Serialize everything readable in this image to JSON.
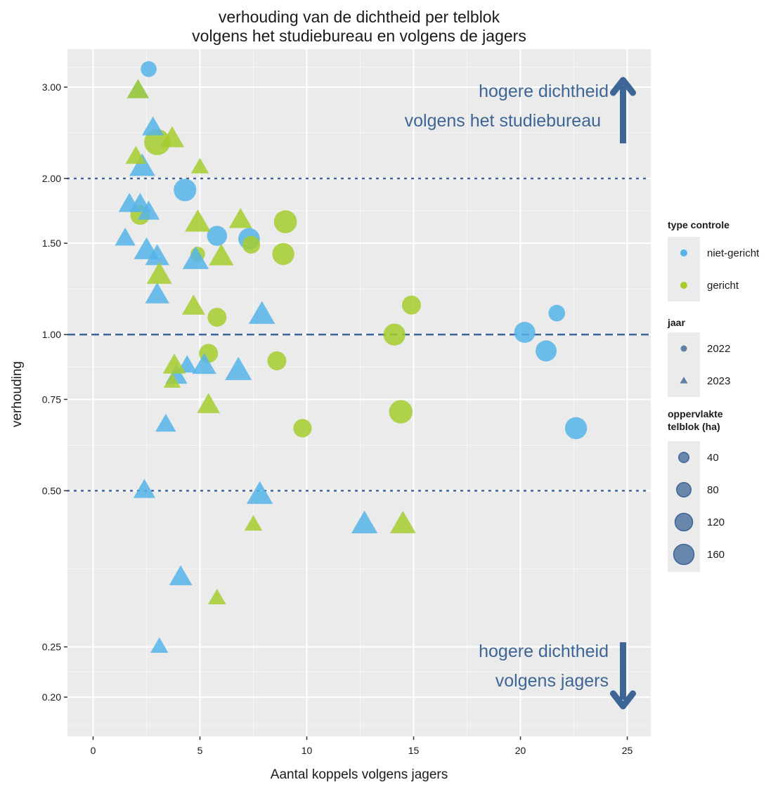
{
  "chart_data": {
    "type": "scatter",
    "title_lines": [
      "verhouding van de dichtheid per telblok",
      "volgens het studiebureau en volgens de jagers"
    ],
    "xlabel": "Aantal koppels volgens jagers",
    "ylabel": "verhouding",
    "xlim": [
      -1.2,
      26.1
    ],
    "ylim": [
      0.168,
      3.55
    ],
    "y_scale": "log",
    "x_ticks": [
      0,
      5,
      10,
      15,
      20,
      25
    ],
    "x_tick_labels": [
      "0",
      "5",
      "10",
      "15",
      "20",
      "25"
    ],
    "y_ticks": [
      0.2,
      0.25,
      0.5,
      0.75,
      1,
      1.5,
      2,
      3
    ],
    "y_tick_labels": [
      "0.20",
      "0.25",
      "0.50",
      "0.75",
      "1.00",
      "1.50",
      "2.00",
      "3.00"
    ],
    "reference_lines": [
      {
        "y": 2.0,
        "style": "dotted"
      },
      {
        "y": 1.0,
        "style": "dashed"
      },
      {
        "y": 0.5,
        "style": "dotted"
      }
    ],
    "grid": true,
    "legend_position": "right",
    "colors": {
      "niet-gericht": "#56b4e9",
      "gericht": "#a6cc2e",
      "annotation": "#3d6596",
      "panel": "#ebebeb"
    },
    "annotations": [
      {
        "lines": [
          "hogere dichtheid",
          "volgens het studiebureau"
        ],
        "arrow": "up"
      },
      {
        "lines": [
          "hogere dichtheid",
          "volgens jagers"
        ],
        "arrow": "down"
      }
    ],
    "legend": {
      "color_title": "type controle",
      "color_items": [
        "niet-gericht",
        "gericht"
      ],
      "shape_title": "jaar",
      "shape_items": [
        {
          "label": "2022",
          "shape": "circle"
        },
        {
          "label": "2023",
          "shape": "triangle"
        }
      ],
      "size_title_lines": [
        "oppervlakte",
        "telblok (ha)"
      ],
      "size_items": [
        40,
        80,
        120,
        160
      ]
    },
    "points": [
      {
        "x": 2.6,
        "y": 3.25,
        "type": "niet-gericht",
        "jaar": "2022",
        "area": 60
      },
      {
        "x": 4.3,
        "y": 1.9,
        "type": "niet-gericht",
        "jaar": "2022",
        "area": 120
      },
      {
        "x": 5.8,
        "y": 1.55,
        "type": "niet-gericht",
        "jaar": "2022",
        "area": 95
      },
      {
        "x": 7.3,
        "y": 1.53,
        "type": "niet-gericht",
        "jaar": "2022",
        "area": 110
      },
      {
        "x": 20.2,
        "y": 1.01,
        "type": "niet-gericht",
        "jaar": "2022",
        "area": 105
      },
      {
        "x": 21.7,
        "y": 1.1,
        "type": "niet-gericht",
        "jaar": "2022",
        "area": 65
      },
      {
        "x": 21.2,
        "y": 0.93,
        "type": "niet-gericht",
        "jaar": "2022",
        "area": 105
      },
      {
        "x": 22.6,
        "y": 0.66,
        "type": "niet-gericht",
        "jaar": "2022",
        "area": 115
      },
      {
        "x": 3.0,
        "y": 2.35,
        "type": "gericht",
        "jaar": "2022",
        "area": 160
      },
      {
        "x": 2.2,
        "y": 1.7,
        "type": "gericht",
        "jaar": "2022",
        "area": 90
      },
      {
        "x": 4.9,
        "y": 1.43,
        "type": "gericht",
        "jaar": "2022",
        "area": 50
      },
      {
        "x": 7.4,
        "y": 1.49,
        "type": "gericht",
        "jaar": "2022",
        "area": 75
      },
      {
        "x": 9.0,
        "y": 1.65,
        "type": "gericht",
        "jaar": "2022",
        "area": 125
      },
      {
        "x": 8.9,
        "y": 1.43,
        "type": "gericht",
        "jaar": "2022",
        "area": 115
      },
      {
        "x": 5.8,
        "y": 1.08,
        "type": "gericht",
        "jaar": "2022",
        "area": 85
      },
      {
        "x": 14.9,
        "y": 1.14,
        "type": "gericht",
        "jaar": "2022",
        "area": 85
      },
      {
        "x": 14.1,
        "y": 1.0,
        "type": "gericht",
        "jaar": "2022",
        "area": 115
      },
      {
        "x": 5.4,
        "y": 0.92,
        "type": "gericht",
        "jaar": "2022",
        "area": 85
      },
      {
        "x": 8.6,
        "y": 0.89,
        "type": "gericht",
        "jaar": "2022",
        "area": 85
      },
      {
        "x": 14.4,
        "y": 0.71,
        "type": "gericht",
        "jaar": "2022",
        "area": 130
      },
      {
        "x": 9.8,
        "y": 0.66,
        "type": "gericht",
        "jaar": "2022",
        "area": 80
      },
      {
        "x": 2.1,
        "y": 2.95,
        "type": "niet-gericht",
        "jaar": "2023",
        "area": 90
      },
      {
        "x": 2.8,
        "y": 2.5,
        "type": "niet-gericht",
        "jaar": "2023",
        "area": 90
      },
      {
        "x": 2.3,
        "y": 2.1,
        "type": "niet-gericht",
        "jaar": "2023",
        "area": 125
      },
      {
        "x": 1.7,
        "y": 1.78,
        "type": "niet-gericht",
        "jaar": "2023",
        "area": 90
      },
      {
        "x": 2.2,
        "y": 1.78,
        "type": "niet-gericht",
        "jaar": "2023",
        "area": 90
      },
      {
        "x": 2.6,
        "y": 1.72,
        "type": "niet-gericht",
        "jaar": "2023",
        "area": 90
      },
      {
        "x": 1.5,
        "y": 1.53,
        "type": "niet-gericht",
        "jaar": "2023",
        "area": 80
      },
      {
        "x": 2.5,
        "y": 1.45,
        "type": "niet-gericht",
        "jaar": "2023",
        "area": 120
      },
      {
        "x": 3.0,
        "y": 1.41,
        "type": "niet-gericht",
        "jaar": "2023",
        "area": 110
      },
      {
        "x": 4.8,
        "y": 1.39,
        "type": "niet-gericht",
        "jaar": "2023",
        "area": 130
      },
      {
        "x": 3.0,
        "y": 1.19,
        "type": "niet-gericht",
        "jaar": "2023",
        "area": 110
      },
      {
        "x": 7.9,
        "y": 1.09,
        "type": "niet-gericht",
        "jaar": "2023",
        "area": 130
      },
      {
        "x": 4.4,
        "y": 0.87,
        "type": "niet-gericht",
        "jaar": "2023",
        "area": 75
      },
      {
        "x": 5.2,
        "y": 0.87,
        "type": "niet-gericht",
        "jaar": "2023",
        "area": 110
      },
      {
        "x": 6.8,
        "y": 0.85,
        "type": "niet-gericht",
        "jaar": "2023",
        "area": 135
      },
      {
        "x": 3.9,
        "y": 0.83,
        "type": "niet-gericht",
        "jaar": "2023",
        "area": 90
      },
      {
        "x": 3.4,
        "y": 0.67,
        "type": "niet-gericht",
        "jaar": "2023",
        "area": 80
      },
      {
        "x": 2.4,
        "y": 0.5,
        "type": "niet-gericht",
        "jaar": "2023",
        "area": 90
      },
      {
        "x": 7.8,
        "y": 0.49,
        "type": "niet-gericht",
        "jaar": "2023",
        "area": 130
      },
      {
        "x": 12.7,
        "y": 0.43,
        "type": "niet-gericht",
        "jaar": "2023",
        "area": 130
      },
      {
        "x": 4.1,
        "y": 0.34,
        "type": "niet-gericht",
        "jaar": "2023",
        "area": 100
      },
      {
        "x": 3.1,
        "y": 0.25,
        "type": "niet-gericht",
        "jaar": "2023",
        "area": 60
      },
      {
        "x": 2.1,
        "y": 2.95,
        "type": "gericht",
        "jaar": "2023",
        "area": 90
      },
      {
        "x": 3.7,
        "y": 2.38,
        "type": "gericht",
        "jaar": "2023",
        "area": 110
      },
      {
        "x": 2.0,
        "y": 2.2,
        "type": "gericht",
        "jaar": "2023",
        "area": 80
      },
      {
        "x": 5.0,
        "y": 2.1,
        "type": "gericht",
        "jaar": "2023",
        "area": 60
      },
      {
        "x": 4.9,
        "y": 1.64,
        "type": "gericht",
        "jaar": "2023",
        "area": 125
      },
      {
        "x": 6.9,
        "y": 1.66,
        "type": "gericht",
        "jaar": "2023",
        "area": 100
      },
      {
        "x": 6.0,
        "y": 1.41,
        "type": "gericht",
        "jaar": "2023",
        "area": 115
      },
      {
        "x": 3.1,
        "y": 1.3,
        "type": "gericht",
        "jaar": "2023",
        "area": 120
      },
      {
        "x": 4.7,
        "y": 1.13,
        "type": "gericht",
        "jaar": "2023",
        "area": 100
      },
      {
        "x": 3.8,
        "y": 0.87,
        "type": "gericht",
        "jaar": "2023",
        "area": 100
      },
      {
        "x": 3.7,
        "y": 0.81,
        "type": "gericht",
        "jaar": "2023",
        "area": 55
      },
      {
        "x": 5.4,
        "y": 0.73,
        "type": "gericht",
        "jaar": "2023",
        "area": 100
      },
      {
        "x": 7.5,
        "y": 0.43,
        "type": "gericht",
        "jaar": "2023",
        "area": 60
      },
      {
        "x": 14.5,
        "y": 0.43,
        "type": "gericht",
        "jaar": "2023",
        "area": 125
      },
      {
        "x": 5.8,
        "y": 0.31,
        "type": "gericht",
        "jaar": "2023",
        "area": 60
      }
    ]
  }
}
